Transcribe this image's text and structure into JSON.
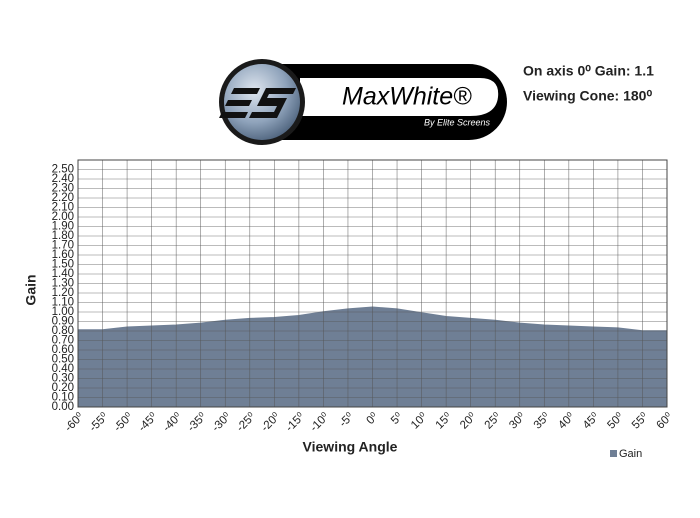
{
  "logo": {
    "name": "MaxWhite®",
    "tagline": "By Elite Screens"
  },
  "annotations": [
    "On axis 0⁰ Gain: 1.1",
    "Viewing Cone: 180⁰"
  ],
  "chart_data": {
    "type": "area",
    "x_label": "Viewing Angle",
    "y_label": "Gain",
    "x": [
      -60,
      -55,
      -50,
      -45,
      -40,
      -35,
      -30,
      -25,
      -20,
      -15,
      -10,
      -5,
      0,
      5,
      10,
      15,
      20,
      25,
      30,
      35,
      40,
      45,
      50,
      55,
      60
    ],
    "series": [
      {
        "name": "Gain",
        "color": "#6f7f95",
        "values": [
          0.81,
          0.81,
          0.84,
          0.85,
          0.86,
          0.88,
          0.91,
          0.93,
          0.94,
          0.96,
          1.0,
          1.03,
          1.05,
          1.03,
          0.99,
          0.95,
          0.93,
          0.91,
          0.88,
          0.86,
          0.85,
          0.84,
          0.83,
          0.8,
          0.8
        ]
      }
    ],
    "xlim": [
      -60,
      60
    ],
    "xticks": [
      {
        "value": -60,
        "label": "-60⁰"
      },
      {
        "value": -55,
        "label": "-55⁰"
      },
      {
        "value": -50,
        "label": "-50⁰"
      },
      {
        "value": -45,
        "label": "-45⁰"
      },
      {
        "value": -40,
        "label": "-40⁰"
      },
      {
        "value": -35,
        "label": "-35⁰"
      },
      {
        "value": -30,
        "label": "-30⁰"
      },
      {
        "value": -25,
        "label": "-25⁰"
      },
      {
        "value": -20,
        "label": "-20⁰"
      },
      {
        "value": -15,
        "label": "-15⁰"
      },
      {
        "value": -10,
        "label": "-10⁰"
      },
      {
        "value": -5,
        "label": "-5⁰"
      },
      {
        "value": 0,
        "label": "0⁰"
      },
      {
        "value": 5,
        "label": "5⁰"
      },
      {
        "value": 10,
        "label": "10⁰"
      },
      {
        "value": 15,
        "label": "15⁰"
      },
      {
        "value": 20,
        "label": "20⁰"
      },
      {
        "value": 25,
        "label": "25⁰"
      },
      {
        "value": 30,
        "label": "30⁰"
      },
      {
        "value": 35,
        "label": "35⁰"
      },
      {
        "value": 40,
        "label": "40⁰"
      },
      {
        "value": 45,
        "label": "45⁰"
      },
      {
        "value": 50,
        "label": "50⁰"
      },
      {
        "value": 55,
        "label": "55⁰"
      },
      {
        "value": 60,
        "label": "60⁰"
      }
    ],
    "ylim": [
      0,
      2.6
    ],
    "yticks": [
      {
        "value": 0,
        "label": "0.00"
      },
      {
        "value": 0.1,
        "label": "0.10"
      },
      {
        "value": 0.2,
        "label": "0.20"
      },
      {
        "value": 0.3,
        "label": "0.30"
      },
      {
        "value": 0.4,
        "label": "0.40"
      },
      {
        "value": 0.5,
        "label": "0.50"
      },
      {
        "value": 0.6,
        "label": "0.60"
      },
      {
        "value": 0.7,
        "label": "0.70"
      },
      {
        "value": 0.8,
        "label": "0.80"
      },
      {
        "value": 0.9,
        "label": "0.90"
      },
      {
        "value": 1.0,
        "label": "1.00"
      },
      {
        "value": 1.1,
        "label": "1.10"
      },
      {
        "value": 1.2,
        "label": "1.20"
      },
      {
        "value": 1.3,
        "label": "1.30"
      },
      {
        "value": 1.4,
        "label": "1.40"
      },
      {
        "value": 1.5,
        "label": "1.50"
      },
      {
        "value": 1.6,
        "label": "1.60"
      },
      {
        "value": 1.7,
        "label": "1.70"
      },
      {
        "value": 1.8,
        "label": "1.80"
      },
      {
        "value": 1.9,
        "label": "1.90"
      },
      {
        "value": 2.0,
        "label": "2.00"
      },
      {
        "value": 2.1,
        "label": "2.10"
      },
      {
        "value": 2.2,
        "label": "2.20"
      },
      {
        "value": 2.3,
        "label": "2.30"
      },
      {
        "value": 2.4,
        "label": "2.40"
      },
      {
        "value": 2.5,
        "label": "2.50"
      }
    ],
    "grid": true,
    "legend": "bottom-right"
  }
}
